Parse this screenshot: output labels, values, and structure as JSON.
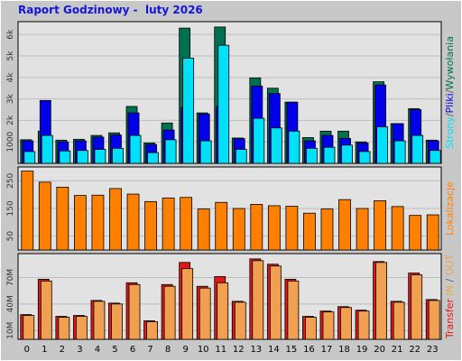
{
  "title": "Raport Godzinowy -  luty 2026",
  "colors": {
    "background": "#c8c8c8",
    "plot_background": "#e2e2e2",
    "grid": "#bdbdbd",
    "title": "#1515d8",
    "wyslane": "#007050",
    "pliki": "#0000e8",
    "strony": "#00e0f8",
    "lokalizacje": "#ff8000",
    "transfer_in": "#e01818",
    "transfer_out": "#f0a050",
    "slash": "#606060"
  },
  "chart_data": [
    {
      "type": "bar",
      "name": "hits",
      "categories": [
        "0",
        "1",
        "2",
        "3",
        "4",
        "5",
        "6",
        "7",
        "8",
        "9",
        "10",
        "11",
        "12",
        "13",
        "14",
        "15",
        "16",
        "17",
        "18",
        "19",
        "20",
        "21",
        "22",
        "23"
      ],
      "series": [
        {
          "name": "Wywołania",
          "values": [
            1100,
            1500,
            1080,
            1120,
            1300,
            1420,
            2650,
            950,
            1880,
            6300,
            2350,
            6350,
            1180,
            3980,
            3500,
            2850,
            1200,
            1500,
            1500,
            1000,
            3800,
            1850,
            2550,
            1080
          ]
        },
        {
          "name": "Pliki",
          "values": [
            1050,
            2930,
            1000,
            1050,
            1220,
            1320,
            2350,
            880,
            1550,
            2600,
            2300,
            2650,
            1150,
            3600,
            3250,
            2850,
            1050,
            1300,
            1160,
            950,
            3650,
            1850,
            2500,
            1050
          ]
        },
        {
          "name": "Strony",
          "values": [
            550,
            1300,
            580,
            600,
            650,
            700,
            1300,
            500,
            1100,
            4900,
            1050,
            5500,
            650,
            2100,
            1650,
            1500,
            700,
            750,
            850,
            550,
            1700,
            1050,
            1300,
            600
          ]
        }
      ],
      "yticks": [
        "1000",
        "2k",
        "3k",
        "4k",
        "5k",
        "6k"
      ],
      "ytick_values": [
        1000,
        2000,
        3000,
        4000,
        5000,
        6000
      ],
      "ylim": [
        0,
        6600
      ],
      "side_label": {
        "parts": [
          "Strony",
          "/",
          "Pliki",
          "/",
          "Wywołania"
        ]
      }
    },
    {
      "type": "bar",
      "name": "lokalizacje",
      "categories": [
        "0",
        "1",
        "2",
        "3",
        "4",
        "5",
        "6",
        "7",
        "8",
        "9",
        "10",
        "11",
        "12",
        "13",
        "14",
        "15",
        "16",
        "17",
        "18",
        "19",
        "20",
        "21",
        "22",
        "23"
      ],
      "series": [
        {
          "name": "Lokalizacje",
          "values": [
            285,
            245,
            227,
            197,
            198,
            222,
            202,
            175,
            188,
            190,
            148,
            172,
            150,
            165,
            160,
            158,
            133,
            148,
            182,
            150,
            178,
            157,
            125,
            127
          ]
        }
      ],
      "yticks": [
        "50",
        "150",
        "250"
      ],
      "ytick_values": [
        50,
        150,
        250
      ],
      "ylim": [
        0,
        300
      ],
      "side_label": {
        "parts": [
          "Lokalizacje"
        ]
      }
    },
    {
      "type": "bar",
      "name": "transfer",
      "categories": [
        "0",
        "1",
        "2",
        "3",
        "4",
        "5",
        "6",
        "7",
        "8",
        "9",
        "10",
        "11",
        "12",
        "13",
        "14",
        "15",
        "16",
        "17",
        "18",
        "19",
        "20",
        "21",
        "22",
        "23"
      ],
      "series": [
        {
          "name": "IN",
          "values": [
            28,
            68,
            26,
            27,
            44,
            41,
            64,
            21,
            62,
            87,
            60,
            71,
            43,
            91,
            85,
            68,
            26,
            32,
            37,
            33,
            88,
            43,
            75,
            45
          ]
        },
        {
          "name": "OUT",
          "values": [
            27,
            66,
            25,
            26,
            43,
            40,
            62,
            20,
            60,
            80,
            58,
            64,
            42,
            89,
            83,
            66,
            25,
            31,
            36,
            32,
            87,
            42,
            73,
            44
          ]
        }
      ],
      "yticks": [
        "10M",
        "40M",
        "70M"
      ],
      "ytick_values": [
        10,
        40,
        70
      ],
      "ylim": [
        0,
        97
      ],
      "side_label": {
        "parts": [
          "Transfer",
          " ",
          "IN",
          " / ",
          "OUT"
        ]
      }
    }
  ]
}
